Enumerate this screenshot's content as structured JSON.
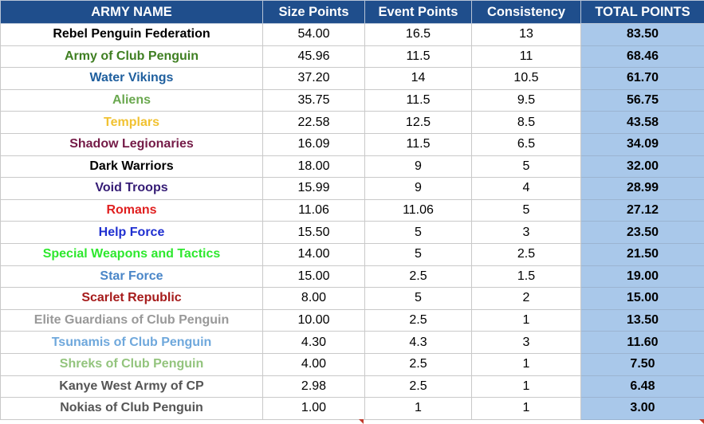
{
  "headers": [
    "ARMY NAME",
    "Size Points",
    "Event Points",
    "Consistency",
    "TOTAL POINTS"
  ],
  "rows": [
    {
      "name": "Rebel Penguin Federation",
      "color": "#000000",
      "size": "54.00",
      "event": "16.5",
      "consistency": "13",
      "total": "83.50"
    },
    {
      "name": "Army of Club Penguin",
      "color": "#3f7f22",
      "size": "45.96",
      "event": "11.5",
      "consistency": "11",
      "total": "68.46"
    },
    {
      "name": "Water Vikings",
      "color": "#1f5f9e",
      "size": "37.20",
      "event": "14",
      "consistency": "10.5",
      "total": "61.70"
    },
    {
      "name": "Aliens",
      "color": "#6aa84f",
      "size": "35.75",
      "event": "11.5",
      "consistency": "9.5",
      "total": "56.75"
    },
    {
      "name": "Templars",
      "color": "#f1c232",
      "size": "22.58",
      "event": "12.5",
      "consistency": "8.5",
      "total": "43.58"
    },
    {
      "name": "Shadow Legionaries",
      "color": "#741b47",
      "size": "16.09",
      "event": "11.5",
      "consistency": "6.5",
      "total": "34.09"
    },
    {
      "name": "Dark Warriors",
      "color": "#000000",
      "size": "18.00",
      "event": "9",
      "consistency": "5",
      "total": "32.00"
    },
    {
      "name": "Void Troops",
      "color": "#351c75",
      "size": "15.99",
      "event": "9",
      "consistency": "4",
      "total": "28.99"
    },
    {
      "name": "Romans",
      "color": "#e02020",
      "size": "11.06",
      "event": "11.06",
      "consistency": "5",
      "total": "27.12"
    },
    {
      "name": "Help Force",
      "color": "#1f2fd0",
      "size": "15.50",
      "event": "5",
      "consistency": "3",
      "total": "23.50"
    },
    {
      "name": "Special Weapons and Tactics",
      "color": "#2ee82e",
      "size": "14.00",
      "event": "5",
      "consistency": "2.5",
      "total": "21.50"
    },
    {
      "name": "Star Force",
      "color": "#4a86c8",
      "size": "15.00",
      "event": "2.5",
      "consistency": "1.5",
      "total": "19.00"
    },
    {
      "name": "Scarlet Republic",
      "color": "#a61c1c",
      "size": "8.00",
      "event": "5",
      "consistency": "2",
      "total": "15.00"
    },
    {
      "name": "Elite Guardians of Club Penguin",
      "color": "#999999",
      "size": "10.00",
      "event": "2.5",
      "consistency": "1",
      "total": "13.50"
    },
    {
      "name": "Tsunamis of Club Penguin",
      "color": "#6fa8dc",
      "size": "4.30",
      "event": "4.3",
      "consistency": "3",
      "total": "11.60"
    },
    {
      "name": "Shreks of Club Penguin",
      "color": "#93c47d",
      "size": "4.00",
      "event": "2.5",
      "consistency": "1",
      "total": "7.50"
    },
    {
      "name": "Kanye West Army of CP",
      "color": "#555555",
      "size": "2.98",
      "event": "2.5",
      "consistency": "1",
      "total": "6.48"
    },
    {
      "name": "Nokias of Club Penguin",
      "color": "#555555",
      "size": "1.00",
      "event": "1",
      "consistency": "1",
      "total": "3.00"
    }
  ],
  "colors": {
    "header_bg": "#1f4e8c",
    "header_text": "#ffffff",
    "total_bg": "#a9c8ea"
  }
}
